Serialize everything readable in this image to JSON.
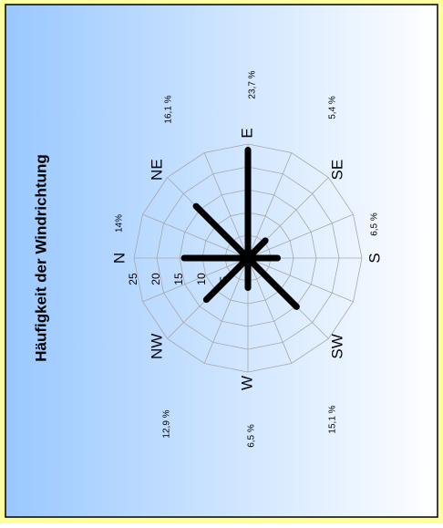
{
  "chart_data": {
    "type": "radar",
    "title": "Häufigkeit der Windrichtung",
    "categories": [
      "N",
      "NE",
      "E",
      "SE",
      "S",
      "SW",
      "W",
      "NW"
    ],
    "values": [
      14,
      16.1,
      23.7,
      5.4,
      6.5,
      15.1,
      6.5,
      12.9
    ],
    "value_labels": [
      "14%",
      "16,1 %",
      "23,7 %",
      "5,4 %",
      "6,5 %",
      "15,1 %",
      "6,5 %",
      "12,9 %"
    ],
    "color": "#000000",
    "rlim": [
      0,
      25
    ],
    "rticks": [
      5,
      10,
      15,
      20,
      25
    ],
    "grid": true
  }
}
